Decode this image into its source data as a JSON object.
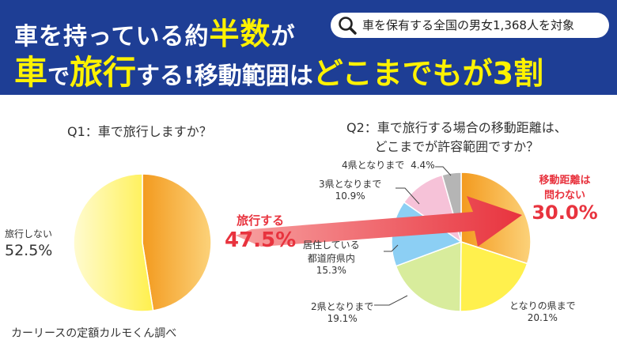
{
  "headline": {
    "line1_a": "車を持っている約",
    "line1_b": "半数",
    "line1_c": "が",
    "line2_a": "車",
    "line2_b": "で",
    "line2_c": "旅行",
    "line2_d": "する!移動範囲は",
    "line2_e": "どこまでもが3割"
  },
  "badge": {
    "text": "車を保有する全国の男女1,368人を対象",
    "icon": "magnifier-icon"
  },
  "source": "カーリースの定額カルモくん調べ",
  "colors": {
    "header_bg": "#1e3e95",
    "accent_yellow": "#fff200",
    "accent_red": "#e8333e"
  },
  "chart_data": [
    {
      "type": "pie",
      "title": "Q1：車で旅行しますか？",
      "slices": [
        {
          "label": "旅行する",
          "value": 47.5,
          "value_text": "47.5%",
          "color": "#f3a12f"
        },
        {
          "label": "旅行しない",
          "value": 52.5,
          "value_text": "52.5%",
          "color": "#fff04d"
        }
      ]
    },
    {
      "type": "pie",
      "title_line1": "Q2：車で旅行する場合の移動距離は、",
      "title_line2": "どこまでが許容範囲ですか？",
      "slices": [
        {
          "label_lines": [
            "移動距離は",
            "問わない"
          ],
          "value": 30.0,
          "value_text": "30.0%",
          "color": "#f3a12f"
        },
        {
          "label_lines": [
            "となりの県まで"
          ],
          "value": 20.1,
          "value_text": "20.1%",
          "color": "#fff04d"
        },
        {
          "label_lines": [
            "2県となりまで"
          ],
          "value": 19.1,
          "value_text": "19.1%",
          "color": "#d8ec9c"
        },
        {
          "label_lines": [
            "居住している",
            "都道府県内"
          ],
          "value": 15.3,
          "value_text": "15.3%",
          "color": "#8ccff4"
        },
        {
          "label_lines": [
            "3県となりまで"
          ],
          "value": 10.9,
          "value_text": "10.9%",
          "color": "#f6c2d8"
        },
        {
          "label_lines": [
            "4県となりまで"
          ],
          "value": 4.4,
          "value_text": "4.4%",
          "color": "#b5b5b5"
        }
      ]
    }
  ]
}
